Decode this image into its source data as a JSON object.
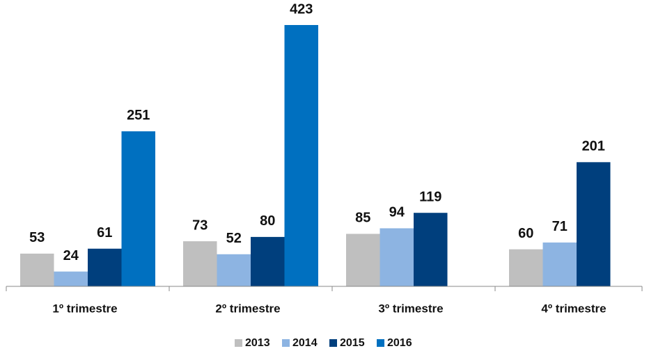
{
  "chart_data": {
    "type": "bar",
    "categories": [
      "1º trimestre",
      "2º trimestre",
      "3º trimestre",
      "4º trimestre"
    ],
    "series": [
      {
        "name": "2013",
        "color": "#bfbfbf",
        "values": [
          53,
          73,
          85,
          60
        ]
      },
      {
        "name": "2014",
        "color": "#8db4e2",
        "values": [
          24,
          52,
          94,
          71
        ]
      },
      {
        "name": "2015",
        "color": "#003f7d",
        "values": [
          61,
          80,
          119,
          201
        ]
      },
      {
        "name": "2016",
        "color": "#0070c0",
        "values": [
          251,
          423,
          null,
          null
        ]
      }
    ],
    "ylim": [
      0,
      450
    ],
    "legend": "bottom"
  }
}
